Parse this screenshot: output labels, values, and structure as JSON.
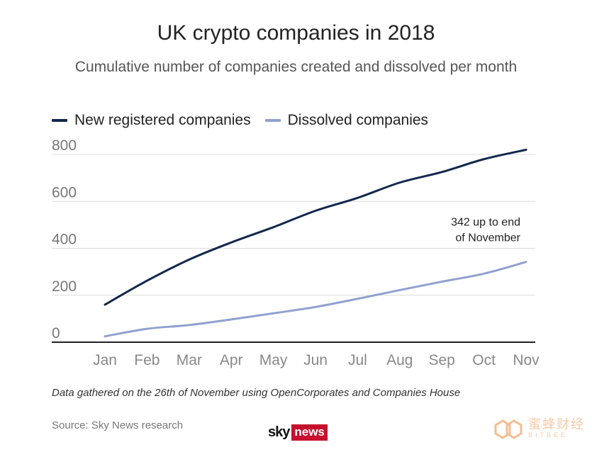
{
  "chart_data": {
    "type": "line",
    "title": "UK crypto companies in 2018",
    "subtitle": "Cumulative number of companies created and dissolved per month",
    "categories": [
      "Jan",
      "Feb",
      "Mar",
      "Apr",
      "May",
      "Jun",
      "Jul",
      "Aug",
      "Sep",
      "Oct",
      "Nov"
    ],
    "series": [
      {
        "name": "New registered companies",
        "color": "#12284d",
        "values": [
          160,
          262,
          352,
          425,
          490,
          560,
          615,
          680,
          725,
          780,
          820
        ]
      },
      {
        "name": "Dissolved companies",
        "color": "#8fa1cf",
        "values": [
          25,
          57,
          73,
          97,
          123,
          150,
          185,
          222,
          258,
          292,
          342
        ]
      }
    ],
    "ylim": [
      0,
      800
    ],
    "yticks": [
      "0",
      "200",
      "400",
      "600",
      "800"
    ],
    "ytick_values": [
      0,
      200,
      400,
      600,
      800
    ],
    "xlabel": "",
    "ylabel": "",
    "grid": "horizontal",
    "legend_position": "top-left",
    "annotation": {
      "lines": [
        "342 up to end",
        "of November"
      ],
      "series": "Dissolved companies",
      "category": "Nov"
    }
  },
  "footer": {
    "note": "Data gathered on the 26th of November using OpenCorporates and Companies House",
    "source": "Source: Sky News research",
    "logo_sky": "sky",
    "logo_news": "news",
    "logo_color": "#c8102e"
  },
  "watermark": {
    "cn": "蜜蜂财经",
    "en": "BITBEE"
  }
}
